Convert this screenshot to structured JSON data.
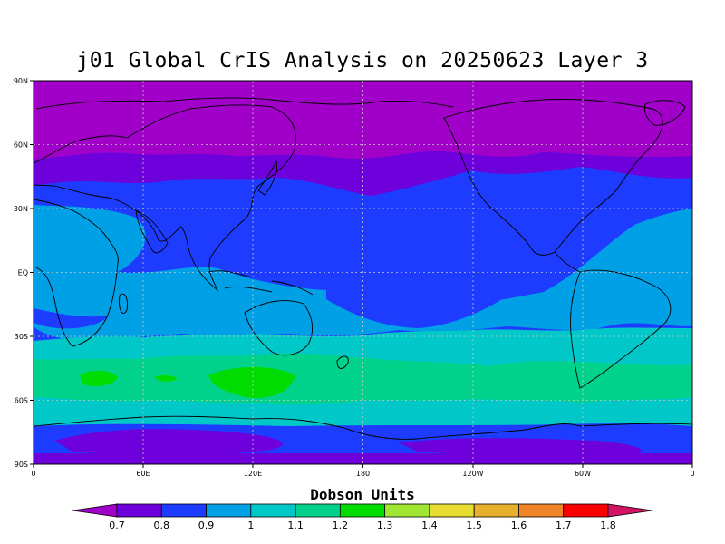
{
  "title": "j01 Global CrIS Analysis on 20250623 Layer 3",
  "lat_ticks": [
    "90N",
    "60N",
    "30N",
    "EQ",
    "30S",
    "60S",
    "90S"
  ],
  "lon_ticks": [
    "0",
    "60E",
    "120E",
    "180",
    "120W",
    "60W",
    "0"
  ],
  "colorbar": {
    "title": "Dobson Units",
    "labels": [
      "0.7",
      "0.8",
      "0.9",
      "1",
      "1.1",
      "1.2",
      "1.3",
      "1.4",
      "1.5",
      "1.6",
      "1.7",
      "1.8"
    ],
    "colors": [
      "#a000c8",
      "#6e00dc",
      "#1e3cff",
      "#00a0e6",
      "#00c8c8",
      "#00d28c",
      "#00dc00",
      "#a0e632",
      "#e6dc32",
      "#e6af2d",
      "#f08228",
      "#fa0000",
      "#d21464"
    ]
  }
}
